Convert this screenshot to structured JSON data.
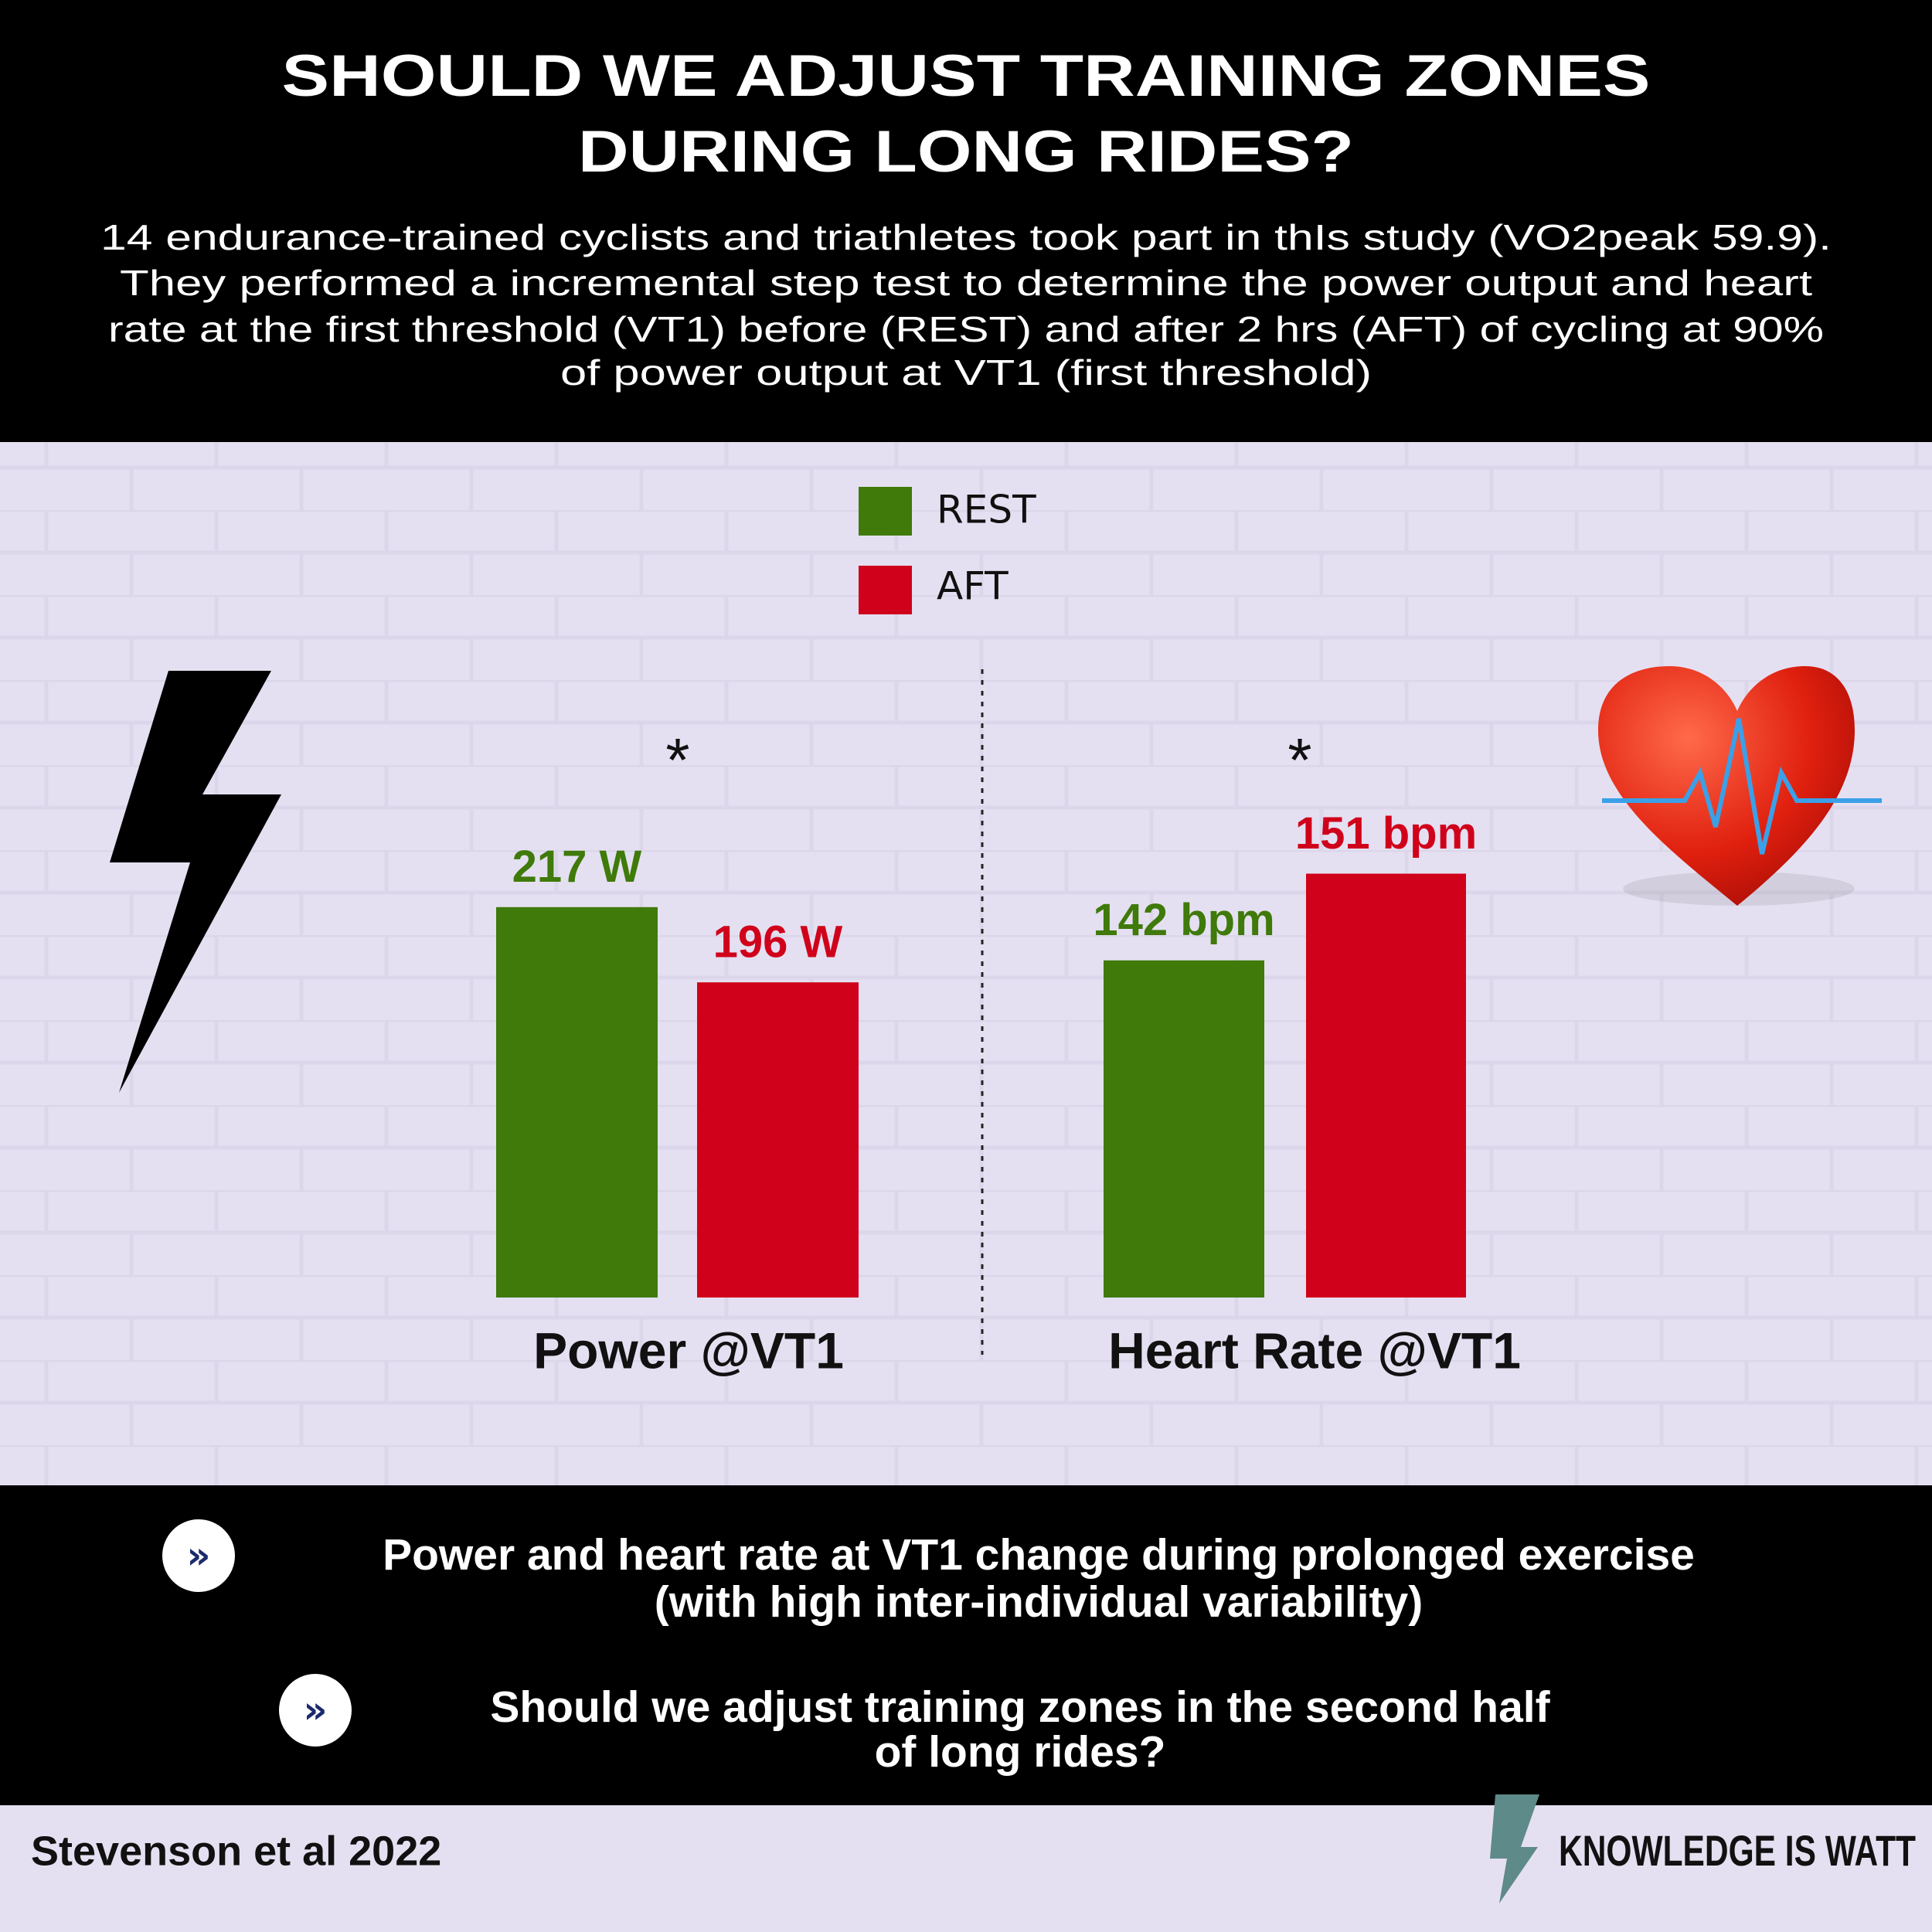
{
  "header": {
    "title": [
      "SHOULD WE ADJUST TRAINING ZONES",
      "DURING LONG RIDES?"
    ],
    "subtitle": [
      "14 endurance-trained cyclists and triathletes took part in thIs study (VO2peak 59.9).",
      "They performed a incremental step test to determine the power output and heart",
      "rate at the first threshold (VT1) before (REST) and after 2 hrs (AFT) of cycling at 90%",
      "of power output at VT1 (first threshold)"
    ]
  },
  "chart_data": [
    {
      "type": "bar",
      "categories": [
        "Power @VT1"
      ],
      "series": [
        {
          "name": "REST",
          "color": "#3f7a0a",
          "values": [
            217
          ],
          "value_labels": [
            "217 W"
          ]
        },
        {
          "name": "AFT",
          "color": "#d0021b",
          "values": [
            196
          ],
          "value_labels": [
            "196 W"
          ]
        }
      ],
      "annotations": [
        "*"
      ],
      "ylim": [
        108,
        264
      ]
    },
    {
      "type": "bar",
      "categories": [
        "Heart Rate @VT1"
      ],
      "series": [
        {
          "color": "#3f7a0a",
          "values": [
            142
          ],
          "value_labels": [
            "142 bpm"
          ]
        },
        {
          "color": "#d0021b",
          "values": [
            151
          ],
          "value_labels": [
            "151 bpm"
          ]
        }
      ],
      "annotations": [
        "*"
      ],
      "ylim": [
        107,
        165
      ]
    }
  ],
  "findings": [
    [
      "Power and heart rate at VT1 change during prolonged exercise",
      "(with high inter-individual variability)"
    ],
    [
      "Should we adjust training zones in the second half",
      "of long rides?"
    ]
  ],
  "footer": {
    "citation": "Stevenson et al 2022",
    "brand": "KNOWLEDGE IS WATT"
  }
}
